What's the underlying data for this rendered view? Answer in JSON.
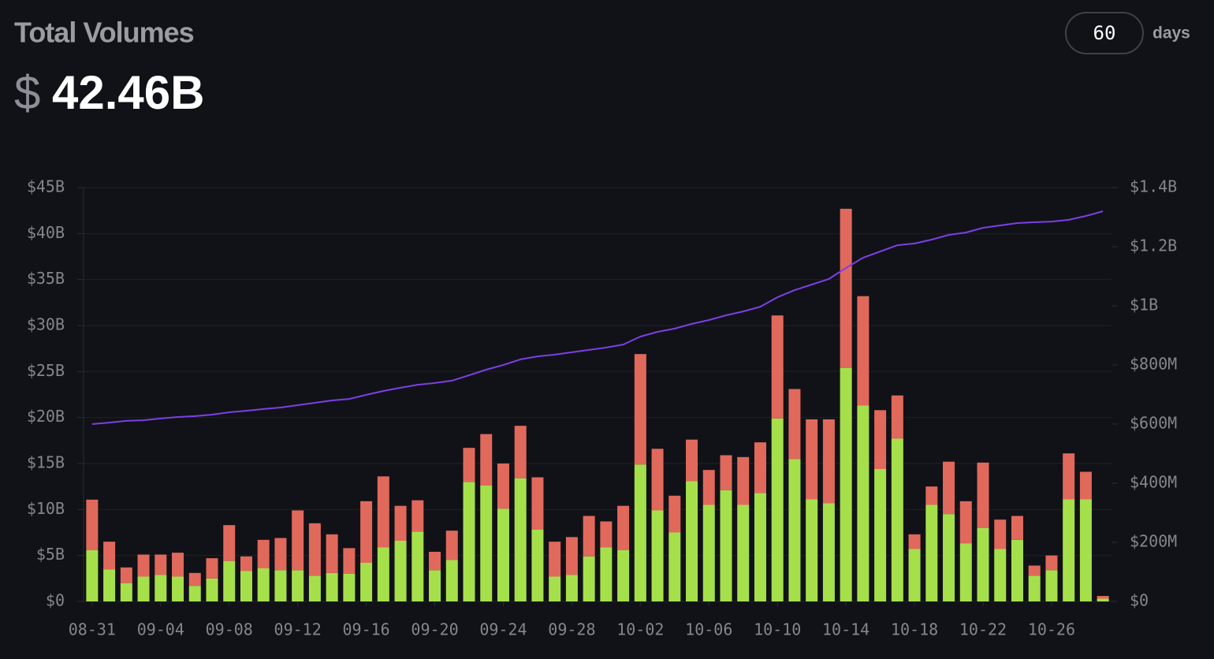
{
  "header": {
    "title": "Total Volumes",
    "currency": "$",
    "value": "42.46B"
  },
  "controls": {
    "days_value": "60",
    "days_label": "days"
  },
  "chart_data": {
    "type": "bar",
    "stacked": true,
    "grid": true,
    "categories": [
      "08-31",
      null,
      null,
      null,
      "09-04",
      null,
      null,
      null,
      "09-08",
      null,
      null,
      null,
      "09-12",
      null,
      null,
      null,
      "09-16",
      null,
      null,
      null,
      "09-20",
      null,
      null,
      null,
      "09-24",
      null,
      null,
      null,
      "09-28",
      null,
      null,
      null,
      "10-02",
      null,
      null,
      null,
      "10-06",
      null,
      null,
      null,
      "10-10",
      null,
      null,
      null,
      "10-14",
      null,
      null,
      null,
      "10-18",
      null,
      null,
      null,
      "10-22",
      null,
      null,
      null,
      "10-26",
      null,
      null,
      null
    ],
    "series": [
      {
        "color": "#a5e04b",
        "values": [
          5.57,
          3.5,
          2.0,
          2.7,
          2.9,
          2.7,
          1.7,
          2.5,
          4.4,
          3.3,
          3.6,
          3.4,
          3.4,
          2.8,
          3.1,
          3.0,
          4.2,
          5.9,
          6.6,
          7.6,
          3.4,
          4.5,
          13.0,
          12.6,
          10.1,
          13.4,
          7.8,
          2.7,
          2.9,
          4.9,
          5.9,
          5.6,
          14.9,
          9.9,
          7.5,
          13.1,
          10.5,
          12.1,
          10.5,
          11.8,
          19.9,
          15.5,
          11.1,
          10.7,
          25.4,
          21.3,
          14.4,
          17.7,
          5.7,
          10.5,
          9.5,
          6.3,
          8.0,
          5.7,
          6.7,
          2.8,
          3.4,
          11.1,
          11.1,
          0.3
        ]
      },
      {
        "color": "#e0695c",
        "values": [
          5.5,
          3.0,
          1.7,
          2.4,
          2.2,
          2.6,
          1.4,
          2.2,
          3.9,
          1.6,
          3.1,
          3.5,
          6.5,
          5.7,
          4.2,
          2.8,
          6.7,
          7.7,
          3.8,
          3.4,
          2.0,
          3.2,
          3.7,
          5.6,
          4.9,
          5.7,
          5.7,
          3.8,
          4.1,
          4.4,
          2.8,
          4.8,
          12.0,
          6.7,
          4.0,
          4.5,
          3.8,
          3.8,
          5.2,
          5.5,
          11.2,
          7.6,
          8.7,
          9.1,
          17.3,
          11.9,
          6.4,
          4.7,
          1.6,
          2.0,
          5.7,
          4.6,
          7.1,
          3.2,
          2.6,
          1.1,
          1.6,
          5.0,
          3.0,
          0.3
        ]
      },
      {
        "type": "line",
        "axis": "y2",
        "color": "#7c3fe6",
        "values": [
          600,
          605,
          611,
          613,
          619,
          624,
          627,
          632,
          640,
          645,
          651,
          656,
          664,
          672,
          680,
          685,
          699,
          712,
          723,
          733,
          739,
          747,
          765,
          784,
          800,
          819,
          829,
          835,
          843,
          851,
          859,
          869,
          896,
          912,
          923,
          939,
          952,
          968,
          981,
          997,
          1029,
          1053,
          1072,
          1091,
          1128,
          1163,
          1184,
          1205,
          1211,
          1224,
          1240,
          1248,
          1264,
          1272,
          1280,
          1283,
          1285,
          1291,
          1304,
          1320
        ]
      }
    ],
    "ylim": [
      0,
      45
    ],
    "yticks": [
      {
        "value": 0,
        "label": "$0"
      },
      {
        "value": 5,
        "label": "$5B"
      },
      {
        "value": 10,
        "label": "$10B"
      },
      {
        "value": 15,
        "label": "$15B"
      },
      {
        "value": 20,
        "label": "$20B"
      },
      {
        "value": 25,
        "label": "$25B"
      },
      {
        "value": 30,
        "label": "$30B"
      },
      {
        "value": 35,
        "label": "$35B"
      },
      {
        "value": 40,
        "label": "$40B"
      },
      {
        "value": 45,
        "label": "$45B"
      }
    ],
    "y2lim": [
      0,
      1400
    ],
    "y2ticks": [
      {
        "value": 0,
        "label": "$0"
      },
      {
        "value": 200,
        "label": "$200M"
      },
      {
        "value": 400,
        "label": "$400M"
      },
      {
        "value": 600,
        "label": "$600M"
      },
      {
        "value": 800,
        "label": "$800M"
      },
      {
        "value": 1000,
        "label": "$1B"
      },
      {
        "value": 1200,
        "label": "$1.2B"
      },
      {
        "value": 1400,
        "label": "$1.4B"
      }
    ]
  }
}
